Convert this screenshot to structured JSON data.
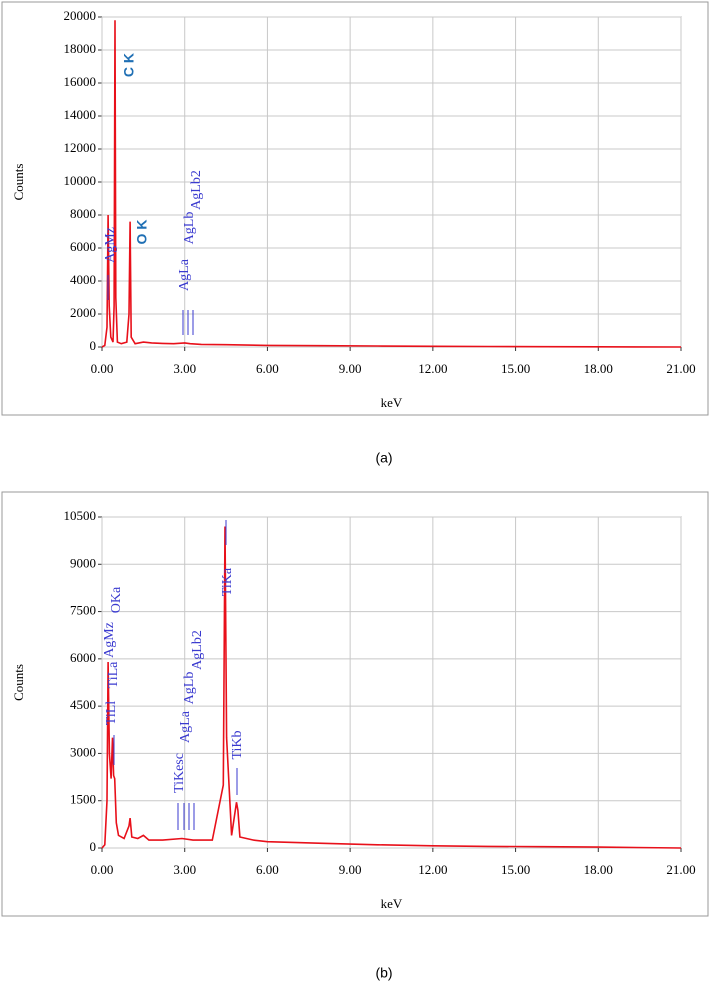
{
  "chart_data": [
    {
      "type": "line",
      "caption": "(a)",
      "x_label": "keV",
      "y_label": "Counts",
      "x": [
        0,
        0.1,
        0.18,
        0.22,
        0.26,
        0.32,
        0.4,
        0.44,
        0.47,
        0.5,
        0.56,
        0.7,
        0.9,
        0.98,
        1.02,
        1.06,
        1.2,
        1.5,
        1.8,
        2.2,
        2.6,
        3.0,
        3.2,
        3.6,
        4.5,
        6,
        8,
        10,
        12,
        14,
        16,
        18,
        21
      ],
      "series": [
        {
          "name": "Counts",
          "color": "#e8101a",
          "values": [
            0,
            100,
            1200,
            8000,
            2500,
            600,
            300,
            2500,
            19800,
            3000,
            300,
            200,
            300,
            2000,
            7600,
            600,
            200,
            300,
            250,
            220,
            200,
            250,
            200,
            160,
            140,
            100,
            80,
            60,
            40,
            30,
            20,
            10,
            0
          ]
        }
      ],
      "xlim": [
        0,
        21
      ],
      "ylim": [
        0,
        20000
      ],
      "xticks": [
        {
          "value": 0,
          "label": "0.00"
        },
        {
          "value": 3,
          "label": "3.00"
        },
        {
          "value": 6,
          "label": "6.00"
        },
        {
          "value": 9,
          "label": "9.00"
        },
        {
          "value": 12,
          "label": "12.00"
        },
        {
          "value": 15,
          "label": "15.00"
        },
        {
          "value": 18,
          "label": "18.00"
        },
        {
          "value": 21,
          "label": "21.00"
        }
      ],
      "yticks": [
        0,
        2000,
        4000,
        6000,
        8000,
        10000,
        12000,
        14000,
        16000,
        18000,
        20000
      ],
      "grid": true,
      "annotations": [
        "C K",
        "O K",
        "AgMz",
        "AgLa",
        "AgLb",
        "AgLb2"
      ]
    },
    {
      "type": "line",
      "caption": "(b)",
      "x_label": "keV",
      "y_label": "Counts",
      "x": [
        0,
        0.1,
        0.18,
        0.22,
        0.27,
        0.33,
        0.38,
        0.42,
        0.46,
        0.52,
        0.6,
        0.8,
        0.98,
        1.02,
        1.08,
        1.3,
        1.5,
        1.7,
        2.2,
        2.9,
        3.3,
        4.0,
        4.4,
        4.46,
        4.52,
        4.7,
        4.88,
        4.93,
        5.0,
        5.5,
        6,
        8,
        10,
        12,
        14,
        16,
        18,
        21
      ],
      "series": [
        {
          "name": "Counts",
          "color": "#e8101a",
          "values": [
            0,
            100,
            1500,
            5900,
            3000,
            2200,
            3500,
            2300,
            2200,
            800,
            400,
            300,
            700,
            950,
            350,
            300,
            400,
            250,
            250,
            300,
            250,
            250,
            2000,
            10200,
            3500,
            400,
            1450,
            1200,
            350,
            250,
            200,
            150,
            100,
            70,
            50,
            40,
            30,
            0
          ]
        }
      ],
      "xlim": [
        0,
        21
      ],
      "ylim": [
        0,
        10500
      ],
      "xticks": [
        {
          "value": 0,
          "label": "0.00"
        },
        {
          "value": 3,
          "label": "3.00"
        },
        {
          "value": 6,
          "label": "6.00"
        },
        {
          "value": 9,
          "label": "9.00"
        },
        {
          "value": 12,
          "label": "12.00"
        },
        {
          "value": 15,
          "label": "15.00"
        },
        {
          "value": 18,
          "label": "18.00"
        },
        {
          "value": 21,
          "label": "21.00"
        }
      ],
      "yticks": [
        0,
        1500,
        3000,
        4500,
        6000,
        7500,
        9000,
        10500
      ],
      "grid": true,
      "annotations": [
        "TiLl",
        "TiLa",
        "AgMz",
        "OKa",
        "TiKesc",
        "AgLa",
        "AgLb",
        "AgLb2",
        "TiKa",
        "TiKb"
      ]
    }
  ]
}
